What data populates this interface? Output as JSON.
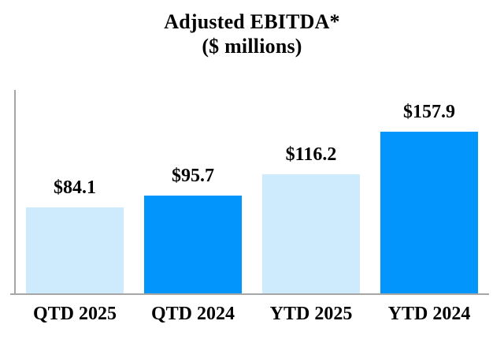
{
  "chart_data": {
    "type": "bar",
    "title": "Adjusted EBITDA*",
    "subtitle": "($ millions)",
    "categories": [
      "QTD 2025",
      "QTD 2024",
      "YTD 2025",
      "YTD 2024"
    ],
    "values": [
      84.1,
      95.7,
      116.2,
      157.9
    ],
    "value_labels": [
      "$84.1",
      "$95.7",
      "$116.2",
      "$157.9"
    ],
    "series": [
      {
        "name": "Adjusted EBITDA ($ millions)",
        "values": [
          84.1,
          95.7,
          116.2,
          157.9
        ]
      }
    ],
    "bar_colors": [
      "#CDEBFC",
      "#0295FB",
      "#CDEBFC",
      "#0295FB"
    ],
    "xlabel": "",
    "ylabel": "",
    "ylim": [
      0,
      200
    ],
    "grid": false,
    "legend": "none",
    "y_axis_visible": true,
    "x_axis_visible": true,
    "axis_color": "#A6A6A6",
    "text_color": "#000000",
    "background_color": "#FFFFFF"
  }
}
